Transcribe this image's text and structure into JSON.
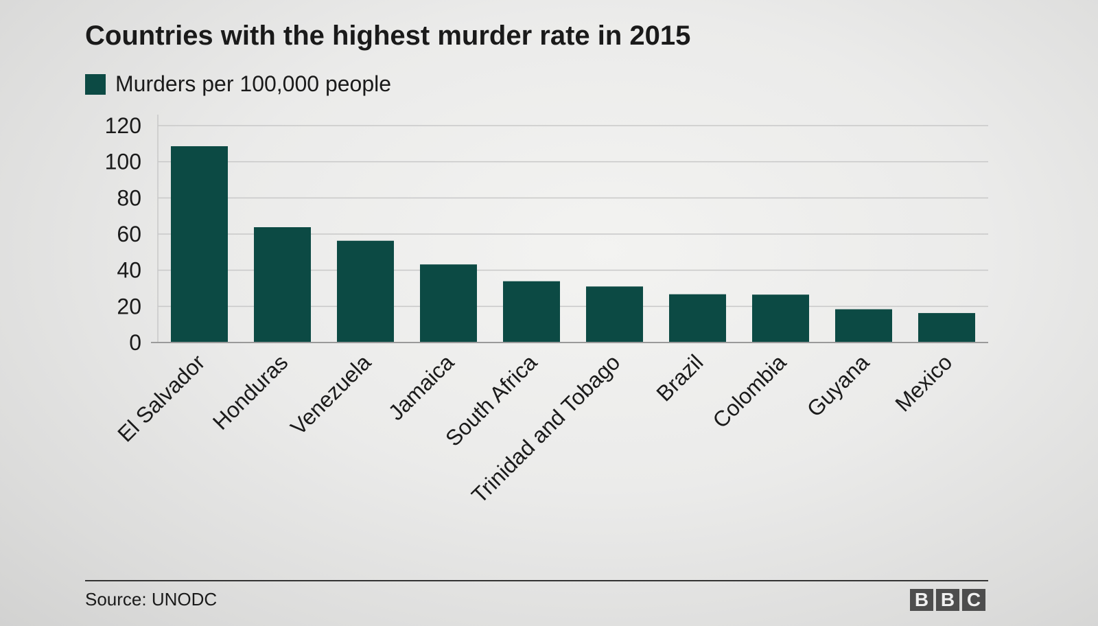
{
  "chart_data": {
    "type": "bar",
    "title": "Countries with the highest murder rate in 2015",
    "legend": "Murders per 100,000 people",
    "categories": [
      "El Salvador",
      "Honduras",
      "Venezuela",
      "Jamaica",
      "South Africa",
      "Trinidad and Tobago",
      "Brazil",
      "Colombia",
      "Guyana",
      "Mexico"
    ],
    "series": [
      {
        "name": "Murders per 100,000 people",
        "values": [
          108.6,
          63.8,
          56.3,
          43.2,
          33.9,
          31.0,
          26.7,
          26.5,
          18.4,
          16.3
        ]
      }
    ],
    "ylim": [
      0,
      120
    ],
    "yticks": [
      0,
      20,
      40,
      60,
      80,
      100,
      120
    ],
    "grid": true,
    "legend_position": "top-left",
    "xlabel": "",
    "ylabel": ""
  },
  "footer": {
    "source": "Source: UNODC",
    "logo_letters": [
      "B",
      "B",
      "C"
    ]
  },
  "colors": {
    "bar": "#0c4a44",
    "grid": "#c8c8c8",
    "text": "#1a1a1a"
  }
}
